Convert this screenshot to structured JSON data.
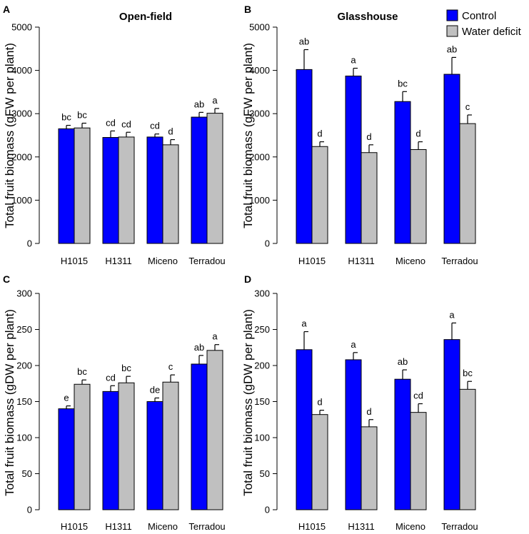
{
  "chart_data": [
    {
      "panel": "A",
      "type": "bar",
      "title": "Open-field",
      "ylabel": "Total fruit biomass (gFW per plant)",
      "ylim": [
        0,
        5000
      ],
      "yticks": [
        0,
        1000,
        2000,
        3000,
        4000,
        5000
      ],
      "categories": [
        "H1015",
        "H1311",
        "Miceno",
        "Terradou"
      ],
      "series": [
        {
          "name": "Control",
          "color": "#0000ff",
          "values": [
            2650,
            2450,
            2460,
            2920
          ],
          "errors": [
            80,
            150,
            70,
            110
          ],
          "labels": [
            "bc",
            "cd",
            "cd",
            "ab"
          ]
        },
        {
          "name": "Water deficit",
          "color": "#c0c0c0",
          "values": [
            2670,
            2460,
            2280,
            3010
          ],
          "errors": [
            110,
            110,
            120,
            110
          ],
          "labels": [
            "bc",
            "cd",
            "d",
            "a"
          ]
        }
      ]
    },
    {
      "panel": "B",
      "type": "bar",
      "title": "Glasshouse",
      "ylabel": "Total fruit biomass (gFW per plant)",
      "ylim": [
        0,
        5000
      ],
      "yticks": [
        0,
        1000,
        2000,
        3000,
        4000,
        5000
      ],
      "categories": [
        "H1015",
        "H1311",
        "Miceno",
        "Terradou"
      ],
      "series": [
        {
          "name": "Control",
          "color": "#0000ff",
          "values": [
            4020,
            3870,
            3280,
            3910
          ],
          "errors": [
            460,
            180,
            230,
            390
          ],
          "labels": [
            "ab",
            "a",
            "bc",
            "ab"
          ]
        },
        {
          "name": "Water deficit",
          "color": "#c0c0c0",
          "values": [
            2240,
            2100,
            2170,
            2770
          ],
          "errors": [
            110,
            180,
            180,
            200
          ],
          "labels": [
            "d",
            "d",
            "d",
            "c"
          ]
        }
      ]
    },
    {
      "panel": "C",
      "type": "bar",
      "title": "",
      "ylabel": "Total fruit biomass (gDW per plant)",
      "ylim": [
        0,
        300
      ],
      "yticks": [
        0,
        50,
        100,
        150,
        200,
        250,
        300
      ],
      "categories": [
        "H1015",
        "H1311",
        "Miceno",
        "Terradou"
      ],
      "series": [
        {
          "name": "Control",
          "color": "#0000ff",
          "values": [
            140,
            164,
            150,
            202
          ],
          "errors": [
            4,
            8,
            5,
            12
          ],
          "labels": [
            "e",
            "cd",
            "de",
            "ab"
          ]
        },
        {
          "name": "Water deficit",
          "color": "#c0c0c0",
          "values": [
            174,
            176,
            177,
            221
          ],
          "errors": [
            6,
            9,
            10,
            8
          ],
          "labels": [
            "bc",
            "bc",
            "c",
            "a"
          ]
        }
      ]
    },
    {
      "panel": "D",
      "type": "bar",
      "title": "",
      "ylabel": "Total fruit biomass (gDW per plant)",
      "ylim": [
        0,
        300
      ],
      "yticks": [
        0,
        50,
        100,
        150,
        200,
        250,
        300
      ],
      "categories": [
        "H1015",
        "H1311",
        "Miceno",
        "Terradou"
      ],
      "series": [
        {
          "name": "Control",
          "color": "#0000ff",
          "values": [
            222,
            208,
            181,
            236
          ],
          "errors": [
            25,
            10,
            13,
            23
          ],
          "labels": [
            "a",
            "a",
            "ab",
            "a"
          ]
        },
        {
          "name": "Water deficit",
          "color": "#c0c0c0",
          "values": [
            132,
            115,
            135,
            167
          ],
          "errors": [
            6,
            10,
            12,
            11
          ],
          "labels": [
            "d",
            "d",
            "cd",
            "bc"
          ]
        }
      ]
    }
  ],
  "legend": {
    "entries": [
      {
        "label": "Control",
        "color": "#0000ff"
      },
      {
        "label": "Water deficit",
        "color": "#c0c0c0"
      }
    ]
  }
}
